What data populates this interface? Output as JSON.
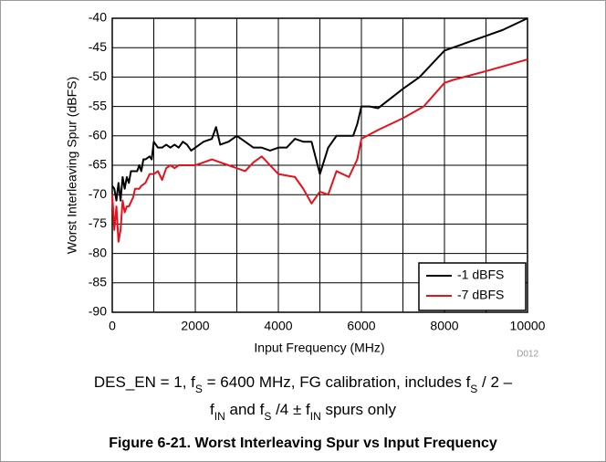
{
  "chart_data": {
    "type": "line",
    "xlabel": "Input Frequency (MHz)",
    "ylabel": "Worst Interleaving Spur (dBFS)",
    "figure_id": "D012",
    "caption": [
      [
        {
          "text": "DES_EN = 1, f"
        },
        {
          "text": "S",
          "sub": true
        },
        {
          "text": " = 6400 MHz, FG calibration, includes f"
        },
        {
          "text": "S",
          "sub": true
        },
        {
          "text": " / 2 –"
        }
      ],
      [
        {
          "text": "f"
        },
        {
          "text": "IN",
          "sub": true
        },
        {
          "text": " and f"
        },
        {
          "text": "S",
          "sub": true
        },
        {
          "text": " /4 ± f"
        },
        {
          "text": "IN",
          "sub": true
        },
        {
          "text": " spurs only"
        }
      ]
    ],
    "figure_title": "Figure 6-21. Worst Interleaving Spur vs Input Frequency",
    "xlim": [
      0,
      10000
    ],
    "xticks": [
      0,
      2000,
      4000,
      6000,
      8000,
      10000
    ],
    "xminorticks": [
      1000,
      3000,
      5000,
      7000,
      9000
    ],
    "ylim": [
      -90,
      -40
    ],
    "yticks": [
      -90,
      -85,
      -80,
      -75,
      -70,
      -65,
      -60,
      -55,
      -50,
      -45,
      -40
    ],
    "grid": true,
    "legend": "lower right",
    "series": [
      {
        "name": "-1 dBFS",
        "color": "#000000",
        "x": [
          0,
          50,
          100,
          150,
          200,
          250,
          300,
          350,
          400,
          450,
          500,
          600,
          650,
          700,
          750,
          800,
          900,
          950,
          1000,
          1100,
          1200,
          1300,
          1400,
          1500,
          1600,
          1700,
          1800,
          1900,
          2000,
          2200,
          2400,
          2500,
          2600,
          2800,
          3000,
          3200,
          3400,
          3600,
          3800,
          4000,
          4200,
          4400,
          4600,
          4800,
          5000,
          5200,
          5400,
          5800,
          5900,
          6000,
          6200,
          6400,
          7000,
          7400,
          8000,
          8200,
          9000,
          9400,
          10000
        ],
        "values": [
          -68.5,
          -69,
          -71,
          -68,
          -71,
          -67,
          -69,
          -67,
          -68,
          -66,
          -66,
          -66,
          -65,
          -66,
          -64,
          -64,
          -63.5,
          -64,
          -61,
          -62,
          -62,
          -61.5,
          -62,
          -61.5,
          -62,
          -61,
          -61.5,
          -62.5,
          -62,
          -61,
          -60.5,
          -58.5,
          -61.5,
          -61,
          -60,
          -61,
          -62,
          -62,
          -62.5,
          -62,
          -62,
          -60.5,
          -61,
          -61,
          -66.5,
          -62,
          -60,
          -60,
          -58,
          -55,
          -55,
          -55.3,
          -52,
          -50,
          -45.5,
          -45,
          -43,
          -42,
          -40
        ]
      },
      {
        "name": "-7 dBFS",
        "color": "#e8101b",
        "x": [
          0,
          50,
          100,
          150,
          200,
          250,
          300,
          350,
          400,
          500,
          550,
          650,
          700,
          800,
          900,
          1000,
          1100,
          1200,
          1300,
          1400,
          1500,
          1600,
          1800,
          2000,
          2200,
          2400,
          2600,
          2800,
          3000,
          3200,
          3400,
          3600,
          3800,
          4000,
          4400,
          4600,
          4800,
          5000,
          5200,
          5400,
          5700,
          5900,
          6000,
          6400,
          7000,
          7500,
          8000,
          8200,
          9000,
          10000
        ],
        "values": [
          -70,
          -76,
          -72,
          -78,
          -76,
          -71,
          -73,
          -72,
          -72,
          -70.5,
          -69,
          -69,
          -68.5,
          -68,
          -66.5,
          -66.5,
          -66,
          -67.5,
          -65.5,
          -65,
          -65.5,
          -65,
          -65,
          -65,
          -64.5,
          -64,
          -64.5,
          -65,
          -65.5,
          -66,
          -64.5,
          -63.5,
          -65,
          -66.5,
          -67,
          -69,
          -71.5,
          -69.5,
          -70,
          -66,
          -67,
          -64,
          -60.5,
          -59,
          -57,
          -55,
          -51,
          -50.5,
          -49,
          -47
        ]
      }
    ]
  }
}
